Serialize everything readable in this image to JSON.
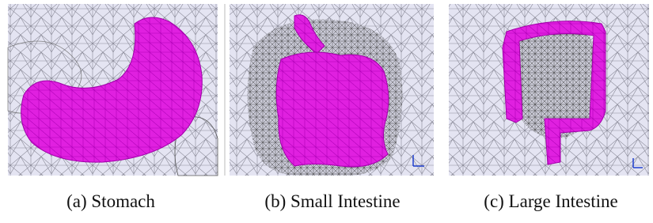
{
  "figure": {
    "panels": [
      {
        "caption": "(a) Stomach"
      },
      {
        "caption": "(b) Small Intestine"
      },
      {
        "caption": "(c) Large Intestine"
      }
    ]
  }
}
